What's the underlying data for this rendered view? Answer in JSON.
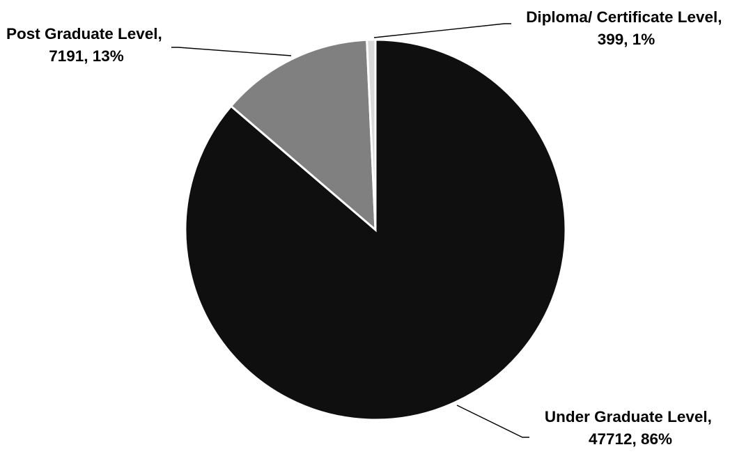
{
  "chart_data": {
    "type": "pie",
    "title": "",
    "start_angle_deg": 0,
    "direction": "clockwise",
    "slices": [
      {
        "name": "Under Graduate Level",
        "value": 47712,
        "percent_label": "86%",
        "label_line1": "Under Graduate Level,",
        "label_line2": "47712, 86%",
        "color": "#0f0f0f"
      },
      {
        "name": "Post Graduate Level",
        "value": 7191,
        "percent_label": "13%",
        "label_line1": "Post Graduate Level,",
        "label_line2": "7191, 13%",
        "color": "#808080"
      },
      {
        "name": "Diploma/ Certificate Level",
        "value": 399,
        "percent_label": "1%",
        "label_line1": "Diploma/ Certificate Level,",
        "label_line2": "399, 1%",
        "color": "#d9d9d9"
      }
    ],
    "legend": "none"
  }
}
